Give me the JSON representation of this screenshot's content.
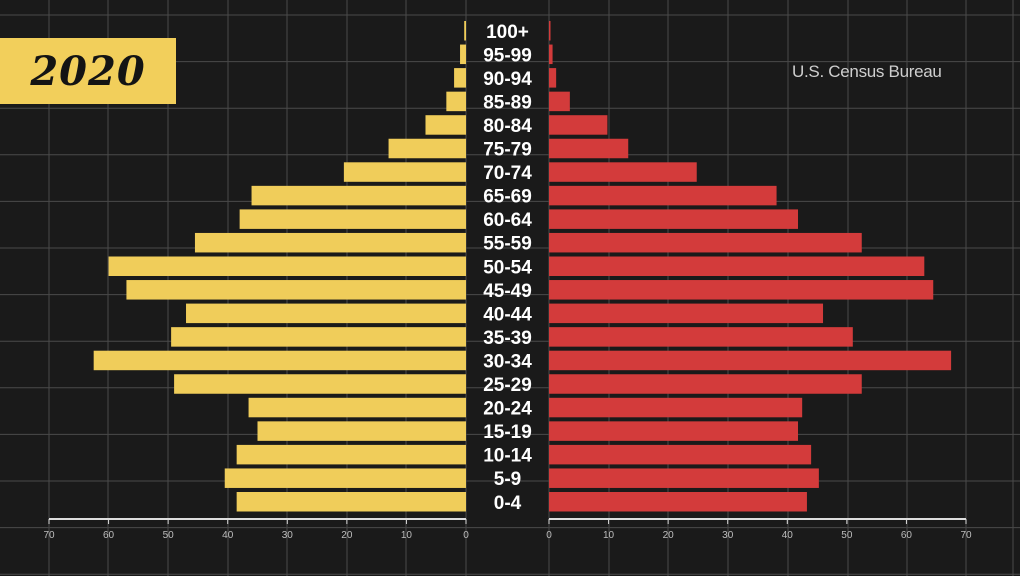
{
  "title_badge": "2020",
  "source": "U.S. Census Bureau",
  "colors": {
    "background": "#1a1a1a",
    "grid": "#4a4a4a",
    "left_bar": "#f0cd5a",
    "right_bar": "#d33b3b",
    "badge": "#f2cf5b",
    "age_label": "#ffffff",
    "axis": "#dddddd"
  },
  "chart_data": {
    "type": "bar",
    "orientation": "horizontal-butterfly",
    "categories": [
      "100+",
      "95-99",
      "90-94",
      "85-89",
      "80-84",
      "75-79",
      "70-74",
      "65-69",
      "60-64",
      "55-59",
      "50-54",
      "45-49",
      "40-44",
      "35-39",
      "30-34",
      "25-29",
      "20-24",
      "15-19",
      "10-14",
      "5-9",
      "0-4"
    ],
    "series": [
      {
        "side": "left",
        "values": [
          0.3,
          1,
          2,
          3.3,
          6.8,
          13,
          20.5,
          36,
          38,
          45.5,
          60,
          57,
          47,
          49.5,
          62.5,
          49,
          36.5,
          35,
          38.5,
          40.5,
          38.5
        ]
      },
      {
        "side": "right",
        "values": [
          0.2,
          0.6,
          1.2,
          3.5,
          9.8,
          13.3,
          24.8,
          38.2,
          41.8,
          52.5,
          63,
          64.5,
          46,
          51,
          67.5,
          52.5,
          42.5,
          41.8,
          44,
          45.3,
          43.3
        ]
      }
    ],
    "left_axis": {
      "ticks": [
        "70",
        "60",
        "50",
        "40",
        "30",
        "20",
        "10",
        "0"
      ],
      "range": [
        0,
        70
      ]
    },
    "right_axis": {
      "ticks": [
        "0",
        "10",
        "20",
        "30",
        "40",
        "50",
        "60",
        "70"
      ],
      "range": [
        0,
        70
      ]
    },
    "grid": true,
    "legend": "none"
  }
}
